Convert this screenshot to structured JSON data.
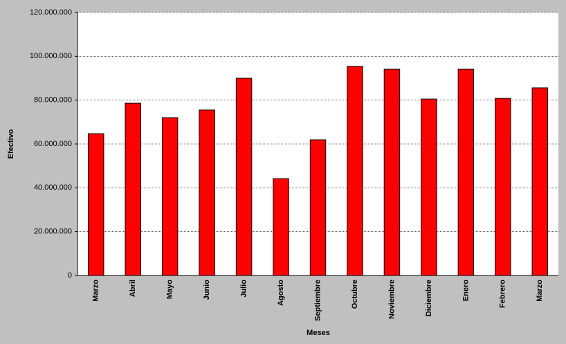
{
  "chart_data": {
    "type": "bar",
    "x_label": "Meses",
    "y_label": "Efectivo",
    "categories": [
      "Marzo",
      "Abril",
      "Mayo",
      "Junio",
      "Julio",
      "Agosto",
      "Septiembre",
      "Octubre",
      "Noviembre",
      "Diciembre",
      "Enero",
      "Febrero",
      "Marzo"
    ],
    "values": [
      64700000,
      78600000,
      72000000,
      75500000,
      90000000,
      44200000,
      61900000,
      95400000,
      94100000,
      80500000,
      94100000,
      80800000,
      85600000
    ],
    "color": "#ff0000",
    "ylim": [
      0,
      120000000
    ],
    "yticks": [
      0,
      {
        "value": 20000000,
        "label": "20.000.000"
      },
      {
        "value": 40000000,
        "label": "40.000.000"
      },
      {
        "value": 60000000,
        "label": "60.000.000"
      },
      {
        "value": 80000000,
        "label": "80.000.000"
      },
      {
        "value": 100000000,
        "label": "100.000.000"
      },
      {
        "value": 120000000,
        "label": "120.000.000"
      }
    ],
    "grid": true
  }
}
